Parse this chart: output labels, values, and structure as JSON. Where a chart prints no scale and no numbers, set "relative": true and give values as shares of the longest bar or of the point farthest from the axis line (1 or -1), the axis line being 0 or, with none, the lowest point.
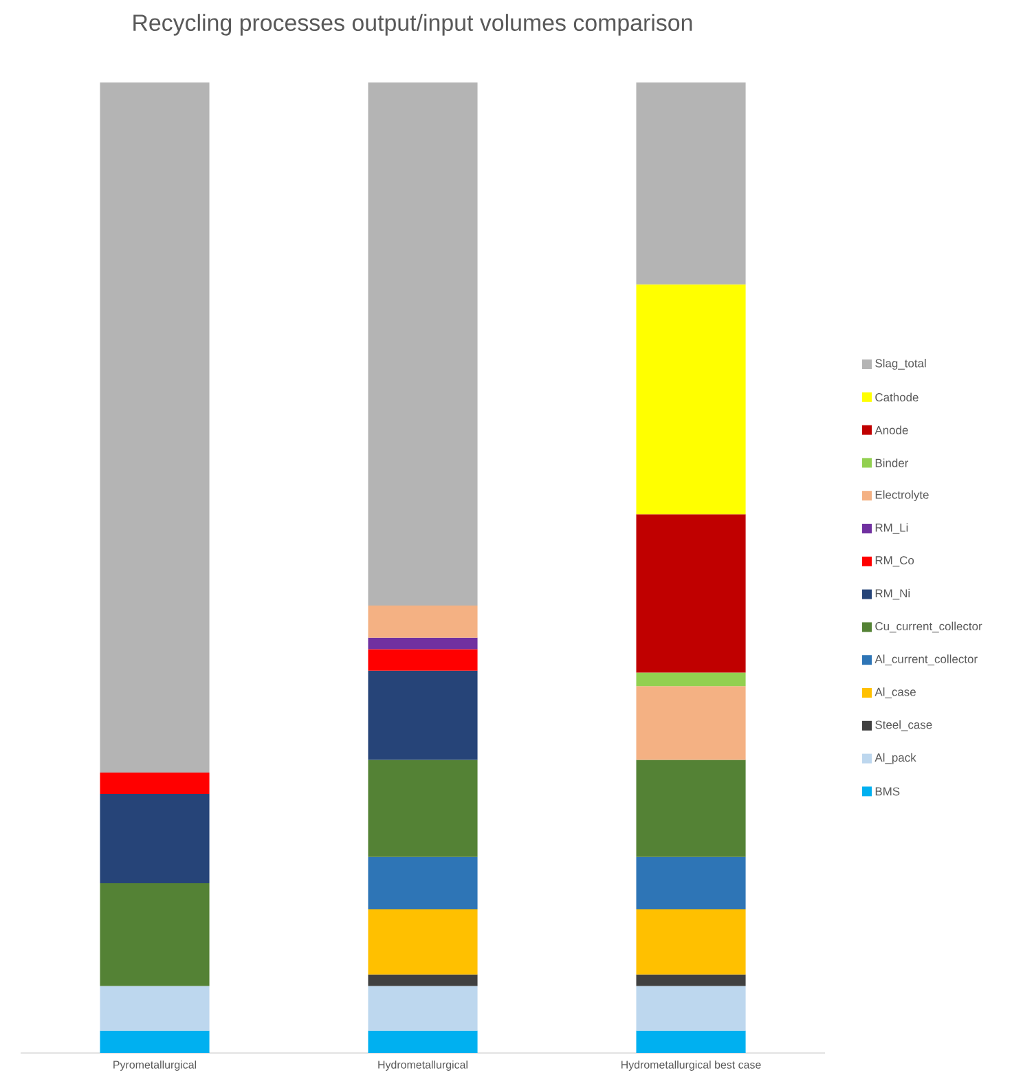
{
  "chart_data": {
    "type": "bar",
    "title": "Recycling processes output/input volumes  comparison",
    "stacked": true,
    "relative": true,
    "legend": "right",
    "categories": [
      "Pyrometallurgical",
      "Hydrometallurgical",
      "Hydrometallurgical best case"
    ],
    "series": [
      {
        "name": "BMS",
        "color": "#00b0f0",
        "values": [
          0.023,
          0.023,
          0.023
        ]
      },
      {
        "name": "Al_pack",
        "color": "#bdd7ee",
        "values": [
          0.046,
          0.046,
          0.046
        ]
      },
      {
        "name": "Steel_case",
        "color": "#404040",
        "values": [
          0,
          0.012,
          0.012
        ]
      },
      {
        "name": "Al_case",
        "color": "#ffc000",
        "values": [
          0,
          0.067,
          0.067
        ]
      },
      {
        "name": "Al_current_collector",
        "color": "#2e75b6",
        "values": [
          0,
          0.054,
          0.054
        ]
      },
      {
        "name": "Cu_current_collector",
        "color": "#548235",
        "values": [
          0.106,
          0.1,
          0.1
        ]
      },
      {
        "name": "RM_Ni",
        "color": "#264478",
        "values": [
          0.092,
          0.092,
          0
        ]
      },
      {
        "name": "RM_Co",
        "color": "#ff0000",
        "values": [
          0.022,
          0.022,
          0
        ]
      },
      {
        "name": "RM_Li",
        "color": "#7030a0",
        "values": [
          0,
          0.012,
          0
        ]
      },
      {
        "name": "Electrolyte",
        "color": "#f4b183",
        "values": [
          0,
          0.033,
          0.076
        ]
      },
      {
        "name": "Binder",
        "color": "#92d050",
        "values": [
          0,
          0,
          0.014
        ]
      },
      {
        "name": "Anode",
        "color": "#c00000",
        "values": [
          0,
          0,
          0.163
        ]
      },
      {
        "name": "Cathode",
        "color": "#ffff00",
        "values": [
          0,
          0,
          0.237
        ]
      },
      {
        "name": "Slag_total",
        "color": "#b4b4b4",
        "values": [
          0.711,
          0.539,
          0.208
        ]
      }
    ]
  }
}
